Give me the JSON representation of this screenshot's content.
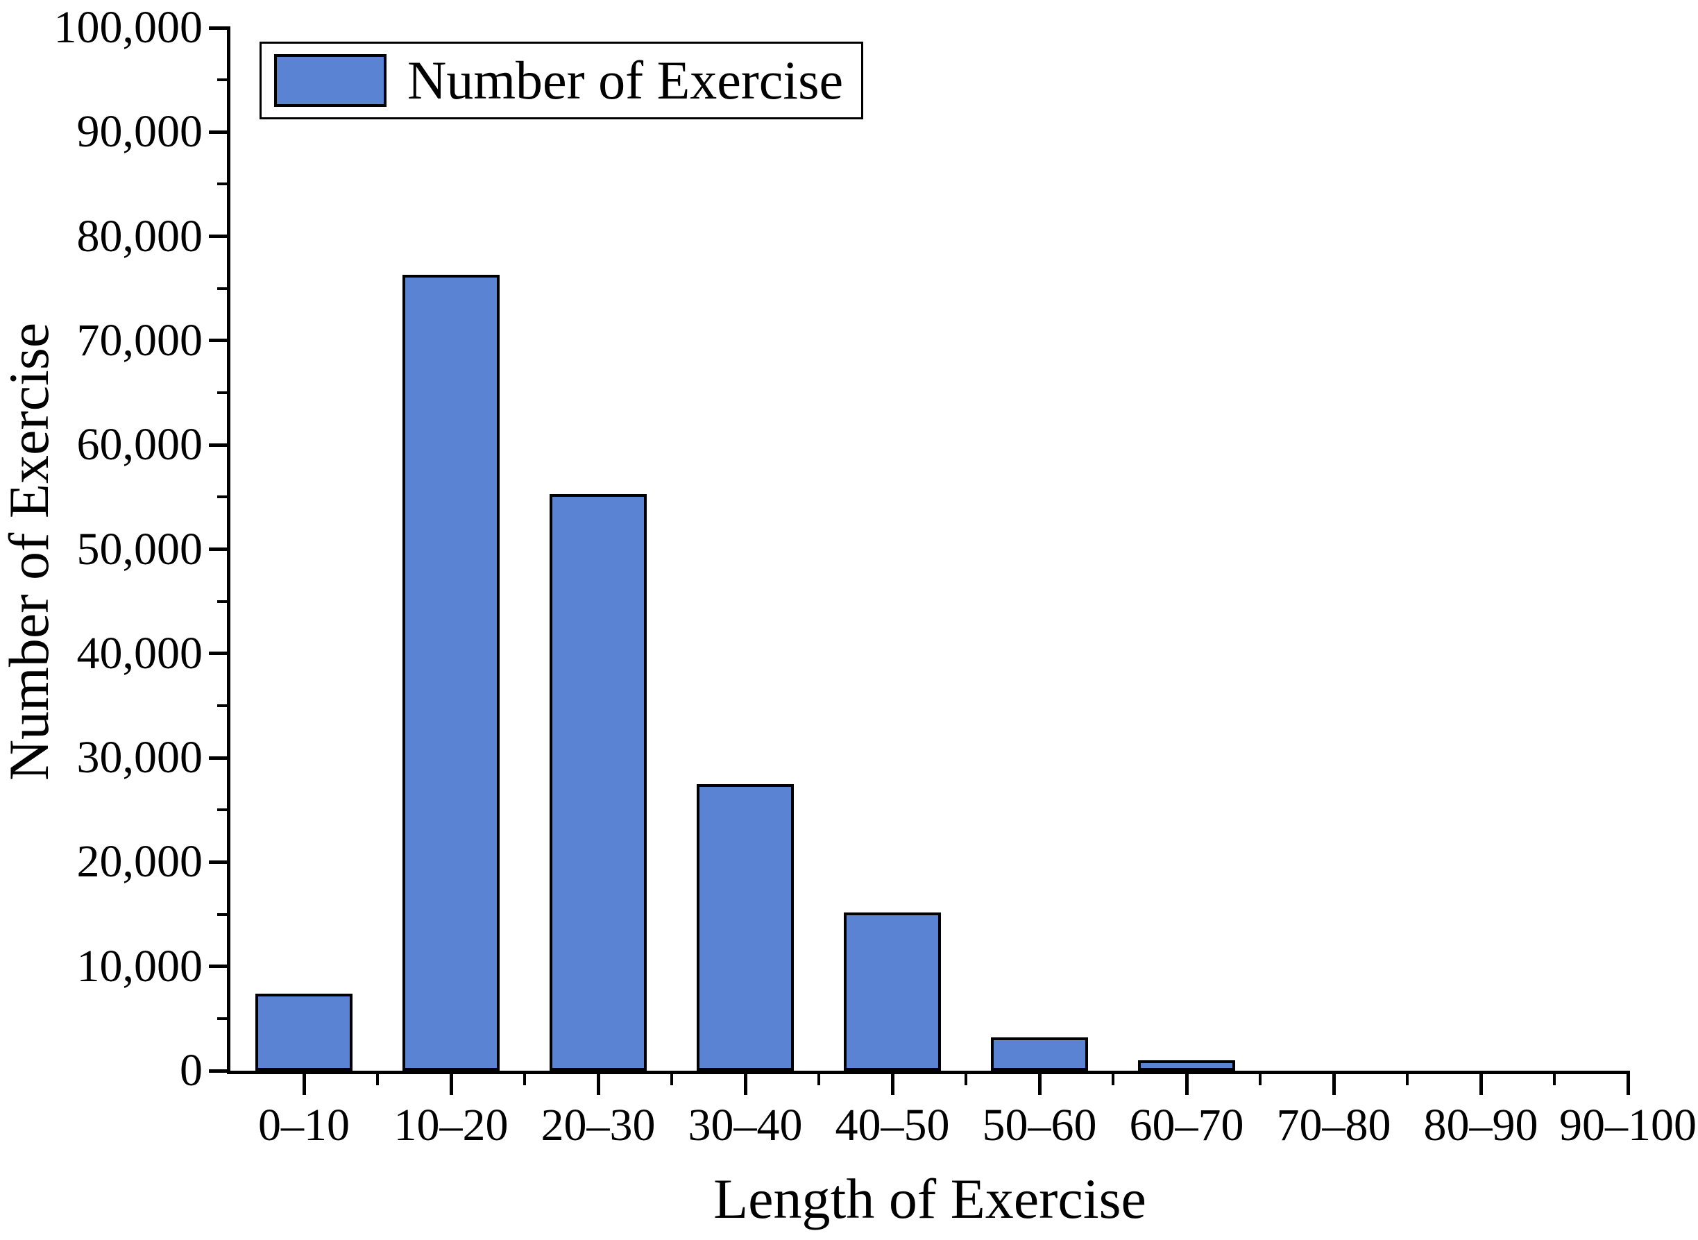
{
  "figure": {
    "background": "#FFFFFF"
  },
  "chart_data": {
    "type": "bar",
    "title": "",
    "xlabel": "Length of Exercise",
    "ylabel": "Number of Exercise",
    "legend": {
      "label": "Number of Exercise",
      "position": "top-left"
    },
    "categories": [
      "0–10",
      "10–20",
      "20–30",
      "30–40",
      "40–50",
      "50–60",
      "60–70",
      "70–80",
      "80–90",
      "90–100"
    ],
    "values": [
      7400,
      76300,
      55300,
      27500,
      15200,
      3200,
      1000,
      0,
      0,
      0
    ],
    "ylim": [
      0,
      100000
    ],
    "ytick_major_step": 10000,
    "ytick_minor_step": 5000,
    "ytick_labels": [
      "0",
      "10,000",
      "20,000",
      "30,000",
      "40,000",
      "50,000",
      "60,000",
      "70,000",
      "80,000",
      "90,000",
      "100,000"
    ],
    "grid": false,
    "bar_color": "#5A83D3",
    "bar_edge_color": "#000000",
    "axis_color": "#000000"
  }
}
